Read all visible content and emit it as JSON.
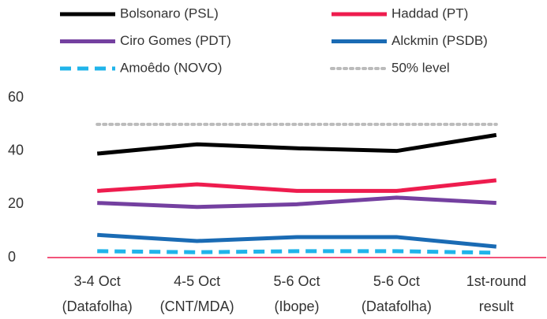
{
  "chart_data": {
    "type": "line",
    "categories": [
      [
        "3-4 Oct",
        "(Datafolha)"
      ],
      [
        "4-5 Oct",
        "(CNT/MDA)"
      ],
      [
        "5-6 Oct",
        "(Ibope)"
      ],
      [
        "5-6 Oct",
        "(Datafolha)"
      ],
      [
        "1st-round",
        "result"
      ]
    ],
    "series": [
      {
        "name": "Bolsonaro (PSL)",
        "color": "#000000",
        "style": "solid",
        "values": [
          39,
          42.5,
          41,
          40,
          46
        ]
      },
      {
        "name": "Haddad (PT)",
        "color": "#ee1c4e",
        "style": "solid",
        "values": [
          25,
          27.5,
          25,
          25,
          29
        ]
      },
      {
        "name": "Ciro Gomes (PDT)",
        "color": "#7440a0",
        "style": "solid",
        "values": [
          20.5,
          19,
          20,
          22.5,
          20.5
        ]
      },
      {
        "name": "Alckmin (PSDB)",
        "color": "#1a6bb4",
        "style": "solid",
        "values": [
          8.5,
          6.2,
          7.7,
          7.7,
          4.1
        ]
      },
      {
        "name": "Amoêdo (NOVO)",
        "color": "#20b4ea",
        "style": "dashed",
        "values": [
          2.4,
          2,
          2.4,
          2.4,
          1.8
        ]
      },
      {
        "name": "50% level",
        "color": "#bbbbbb",
        "style": "dotted",
        "values": [
          50,
          50,
          50,
          50,
          50
        ]
      }
    ],
    "ylim": [
      0,
      60
    ],
    "yticks": [
      0,
      20,
      40,
      60
    ],
    "grid": false,
    "legend": "top"
  }
}
